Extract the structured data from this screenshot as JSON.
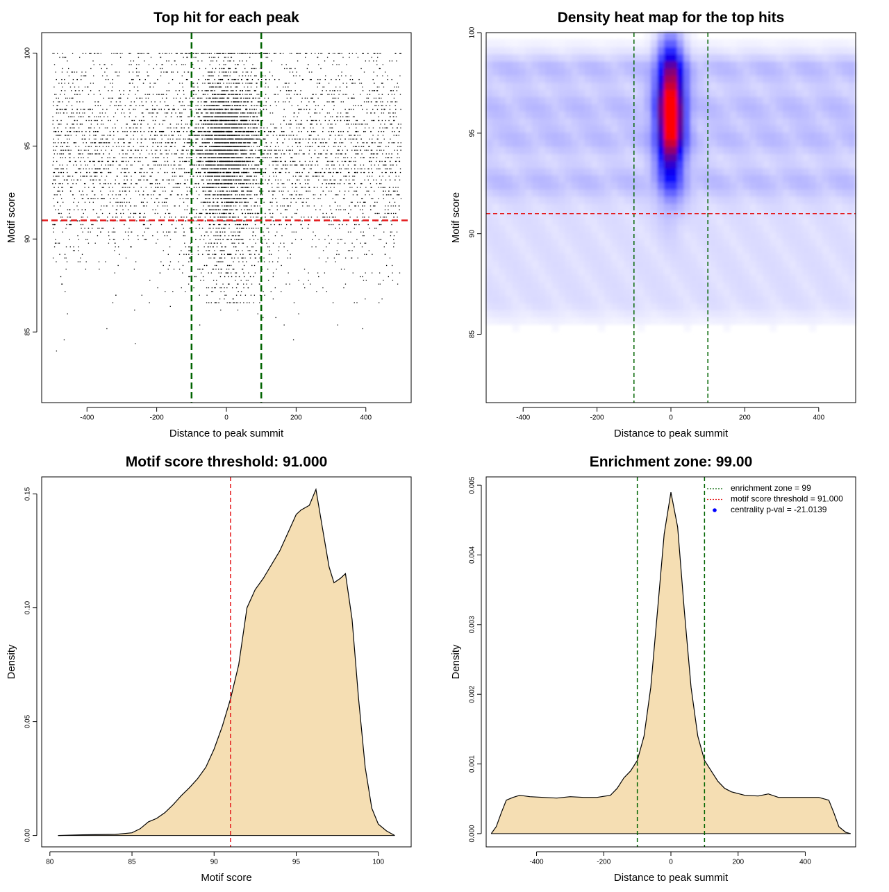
{
  "colors": {
    "threshold": "#e41a1c",
    "zone": "#006400",
    "fill": "#f5deb3",
    "ink": "#000000",
    "heat_low": "#ffffff",
    "heat_mid": "#0000ff",
    "heat_high": "#ff0000"
  },
  "chart_data": [
    {
      "id": "scatter",
      "type": "scatter",
      "title": "Top hit for each peak",
      "xlabel": "Distance to peak summit",
      "ylabel": "Motif score",
      "xlim": [
        -530,
        530
      ],
      "ylim": [
        81.2,
        101.1
      ],
      "xticks": [
        -400,
        -200,
        0,
        200,
        400
      ],
      "yticks": [
        85,
        90,
        95,
        100
      ],
      "hlines": [
        91.0
      ],
      "vlines": [
        -100,
        100
      ],
      "grid": false,
      "points_note": "",
      "point_clouds": [
        {
          "x_range": [
            -500,
            500
          ],
          "y_center": 94.5,
          "y_sd": 3.0,
          "y_range": [
            84,
            100
          ],
          "n": 4500
        },
        {
          "x_center": 0,
          "x_sd": 45,
          "y_center": 95.0,
          "y_sd": 2.0,
          "y_range": [
            88,
            100
          ],
          "n": 2600
        },
        {
          "x_center": 0,
          "x_sd": 60,
          "y_center": 89.0,
          "y_sd": 1.5,
          "y_range": [
            86.5,
            91
          ],
          "n": 300
        }
      ]
    },
    {
      "id": "heatmap",
      "type": "heatmap",
      "title": "Density heat map for the top hits",
      "xlabel": "Distance to peak summit",
      "ylabel": "Motif score",
      "xlim": [
        -500,
        500
      ],
      "ylim": [
        81.6,
        100
      ],
      "xticks": [
        -400,
        -200,
        0,
        200,
        400
      ],
      "yticks": [
        85,
        90,
        95,
        100
      ],
      "hlines": [
        91.0
      ],
      "vlines": [
        -100,
        100
      ],
      "hotspot": {
        "x": 0,
        "y": 96.0,
        "x_sd": 25,
        "y_sd": 2.2
      },
      "background": {
        "y_range": [
          86,
          99
        ],
        "level": 0.12
      },
      "bands": [
        98.2,
        96.3,
        94.7,
        92.6
      ]
    },
    {
      "id": "score-density",
      "type": "area",
      "title": "Motif score threshold: 91.000",
      "xlabel": "Motif score",
      "ylabel": "Density",
      "xlim": [
        79.5,
        102.0
      ],
      "ylim": [
        -0.005,
        0.1575
      ],
      "xticks": [
        80,
        85,
        90,
        95,
        100
      ],
      "yticks": [
        0.0,
        0.05,
        0.1,
        0.15
      ],
      "ytick_labels": [
        "0.00",
        "0.05",
        "0.10",
        "0.15"
      ],
      "vlines": [
        91.0
      ],
      "x": [
        80.5,
        82,
        84,
        85,
        85.5,
        86,
        86.5,
        87,
        87.5,
        88,
        88.5,
        89,
        89.5,
        90,
        90.5,
        91,
        91.5,
        92,
        92.5,
        93,
        93.5,
        94,
        94.5,
        95,
        95.3,
        95.8,
        96.2,
        96.6,
        97,
        97.3,
        97.7,
        98,
        98.4,
        98.8,
        99.2,
        99.6,
        100,
        100.5,
        101
      ],
      "y": [
        0.0,
        0.0003,
        0.0005,
        0.0012,
        0.003,
        0.006,
        0.0075,
        0.01,
        0.0135,
        0.0175,
        0.021,
        0.025,
        0.03,
        0.038,
        0.048,
        0.06,
        0.075,
        0.1,
        0.108,
        0.113,
        0.119,
        0.125,
        0.133,
        0.141,
        0.143,
        0.145,
        0.152,
        0.135,
        0.118,
        0.111,
        0.113,
        0.115,
        0.095,
        0.06,
        0.03,
        0.012,
        0.005,
        0.002,
        0.0
      ]
    },
    {
      "id": "distance-density",
      "type": "area",
      "title": "Enrichment zone: 99.00",
      "xlabel": "Distance to peak summit",
      "ylabel": "Density",
      "xlim": [
        -550,
        550
      ],
      "ylim": [
        -0.00019,
        0.00512
      ],
      "xticks": [
        -400,
        -200,
        0,
        200,
        400
      ],
      "yticks": [
        0.0,
        0.001,
        0.002,
        0.003,
        0.004,
        0.005
      ],
      "ytick_labels": [
        "0.000",
        "0.001",
        "0.002",
        "0.003",
        "0.004",
        "0.005"
      ],
      "vlines": [
        -100,
        100
      ],
      "x": [
        -535,
        -520,
        -505,
        -490,
        -470,
        -450,
        -420,
        -380,
        -340,
        -300,
        -260,
        -220,
        -180,
        -160,
        -140,
        -120,
        -100,
        -80,
        -60,
        -40,
        -20,
        0,
        20,
        40,
        60,
        80,
        100,
        120,
        140,
        160,
        180,
        220,
        260,
        290,
        320,
        360,
        400,
        440,
        470,
        485,
        500,
        520,
        535
      ],
      "y": [
        0.0,
        0.0001,
        0.0003,
        0.00048,
        0.00052,
        0.00055,
        0.00053,
        0.00052,
        0.00051,
        0.00053,
        0.00052,
        0.00052,
        0.00055,
        0.00065,
        0.0008,
        0.0009,
        0.00105,
        0.0014,
        0.0021,
        0.0032,
        0.0043,
        0.0049,
        0.0044,
        0.0032,
        0.0021,
        0.0014,
        0.00105,
        0.0009,
        0.00075,
        0.00065,
        0.0006,
        0.00055,
        0.00054,
        0.00057,
        0.00052,
        0.00052,
        0.00052,
        0.00052,
        0.00048,
        0.0003,
        0.0001,
        2e-05,
        0.0
      ],
      "legend": {
        "position": "top-right",
        "entries": [
          {
            "label": "enrichment zone = 99",
            "symbol": "dotted-line",
            "color": "#006400"
          },
          {
            "label": "motif score threshold = 91.000",
            "symbol": "dotted-line",
            "color": "#e41a1c"
          },
          {
            "label": "centrality p-val = -21.0139",
            "symbol": "dot",
            "color": "#0000ff"
          }
        ]
      }
    }
  ]
}
